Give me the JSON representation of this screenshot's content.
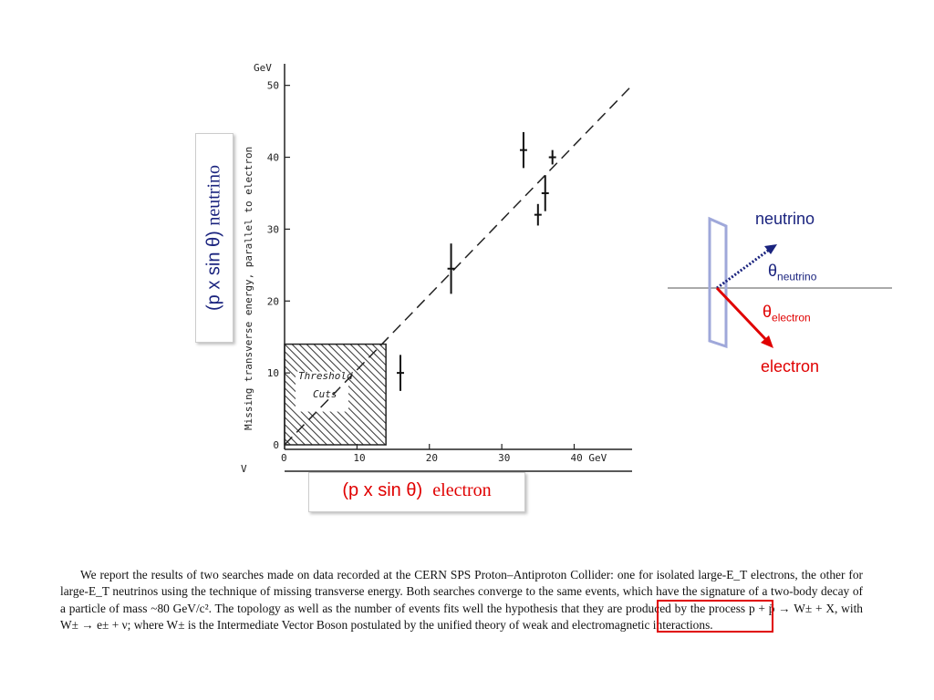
{
  "chart_data": {
    "type": "scatter",
    "ylabel": "Missing transverse energy, parallel to electron",
    "y_unit": "GeV",
    "x_unit": "GeV",
    "xlim": [
      0,
      48
    ],
    "ylim": [
      0,
      53
    ],
    "x_ticks": [
      0,
      10,
      20,
      30,
      40
    ],
    "y_ticks": [
      0,
      10,
      20,
      30,
      40,
      50
    ],
    "x_tick_labels": [
      "0",
      "10",
      "20",
      "30",
      "40 GeV"
    ],
    "y_tick_labels": [
      "0",
      "10",
      "20",
      "30",
      "40",
      "50"
    ],
    "points": [
      {
        "x": 16,
        "y": 10,
        "xerr": 0.5,
        "yerr": 2.5
      },
      {
        "x": 23,
        "y": 24.5,
        "xerr": 0.5,
        "yerr": 3.5
      },
      {
        "x": 33,
        "y": 41,
        "xerr": 0.5,
        "yerr": 2.5
      },
      {
        "x": 35,
        "y": 32,
        "xerr": 0.5,
        "yerr": 1.5
      },
      {
        "x": 36,
        "y": 35,
        "xerr": 0.5,
        "yerr": 2.5
      },
      {
        "x": 37,
        "y": 40,
        "xerr": 0.5,
        "yerr": 1
      }
    ],
    "dashed_line": {
      "from": [
        0,
        0
      ],
      "to": [
        48,
        50
      ]
    },
    "threshold_region": {
      "x": [
        0,
        14
      ],
      "y": [
        0,
        14
      ],
      "label_line1": "Threshold",
      "label_line2": "Cuts"
    },
    "footer_mark": "V",
    "grid": false
  },
  "ybox": {
    "prefix": "(p x sin θ)",
    "suffix": "neutrino"
  },
  "xbox": {
    "prefix": "(p x sin θ)",
    "suffix": "electron"
  },
  "diagram": {
    "neutrino_label": "neutrino",
    "theta_neutrino": "θ",
    "theta_neutrino_sub": "neutrino",
    "theta_electron": "θ",
    "theta_electron_sub": "electron",
    "electron_label": "electron",
    "colors": {
      "neutrino": "#1a237e",
      "electron": "#e00000",
      "detector": "#9fa8da"
    }
  },
  "abstract": {
    "text": "We report the results of two searches made on data recorded at the CERN SPS Proton–Antiproton Collider: one for isolated large-E_T electrons, the other for large-E_T neutrinos using the technique of missing transverse energy. Both searches converge to the same events, which have the signature of a two-body decay of a particle of mass ~80 GeV/c². The topology as well as the number of events fits well the hypothesis that they are produced by the process p + p̄ → W± + X, with W± → e± + ν; where W± is the Intermediate Vector Boson postulated by the unified theory of weak and electromagnetic interactions."
  }
}
